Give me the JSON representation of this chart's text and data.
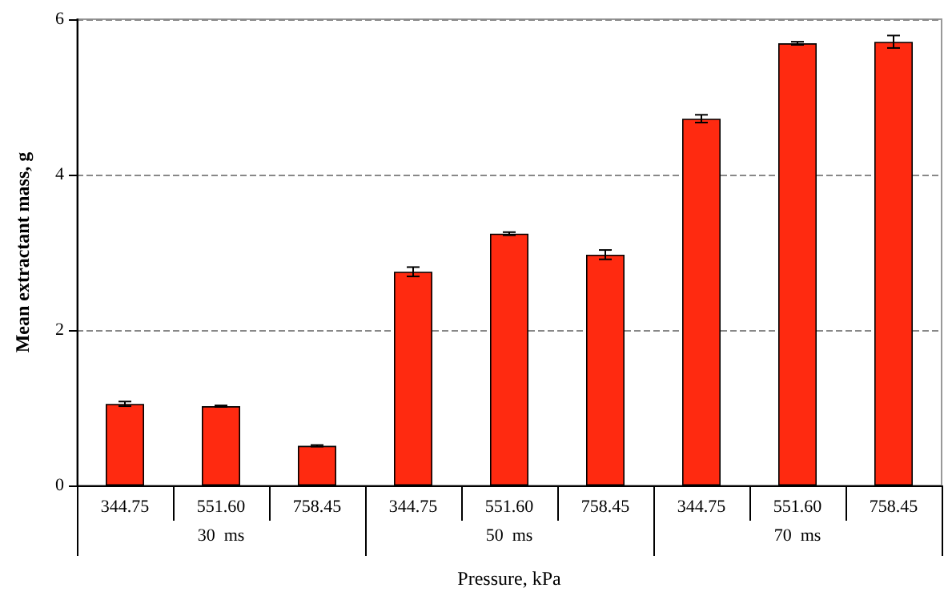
{
  "chart_data": {
    "type": "bar",
    "xlabel": "Pressure, kPa",
    "ylabel": "Mean extractant mass, g",
    "categories": [
      "344.75",
      "551.60",
      "758.45",
      "344.75",
      "551.60",
      "758.45",
      "344.75",
      "551.60",
      "758.45"
    ],
    "values": [
      1.05,
      1.02,
      0.51,
      2.75,
      3.24,
      2.97,
      4.72,
      5.69,
      5.71
    ],
    "errors": [
      0.03,
      0.01,
      0.01,
      0.06,
      0.02,
      0.06,
      0.05,
      0.02,
      0.08
    ],
    "color": "#ff2a10",
    "annotations": [
      "30  ms",
      "50  ms",
      "70  ms"
    ],
    "ylim": [
      0,
      6
    ],
    "yticks": [
      0,
      2,
      4,
      6
    ],
    "grid": "y"
  }
}
